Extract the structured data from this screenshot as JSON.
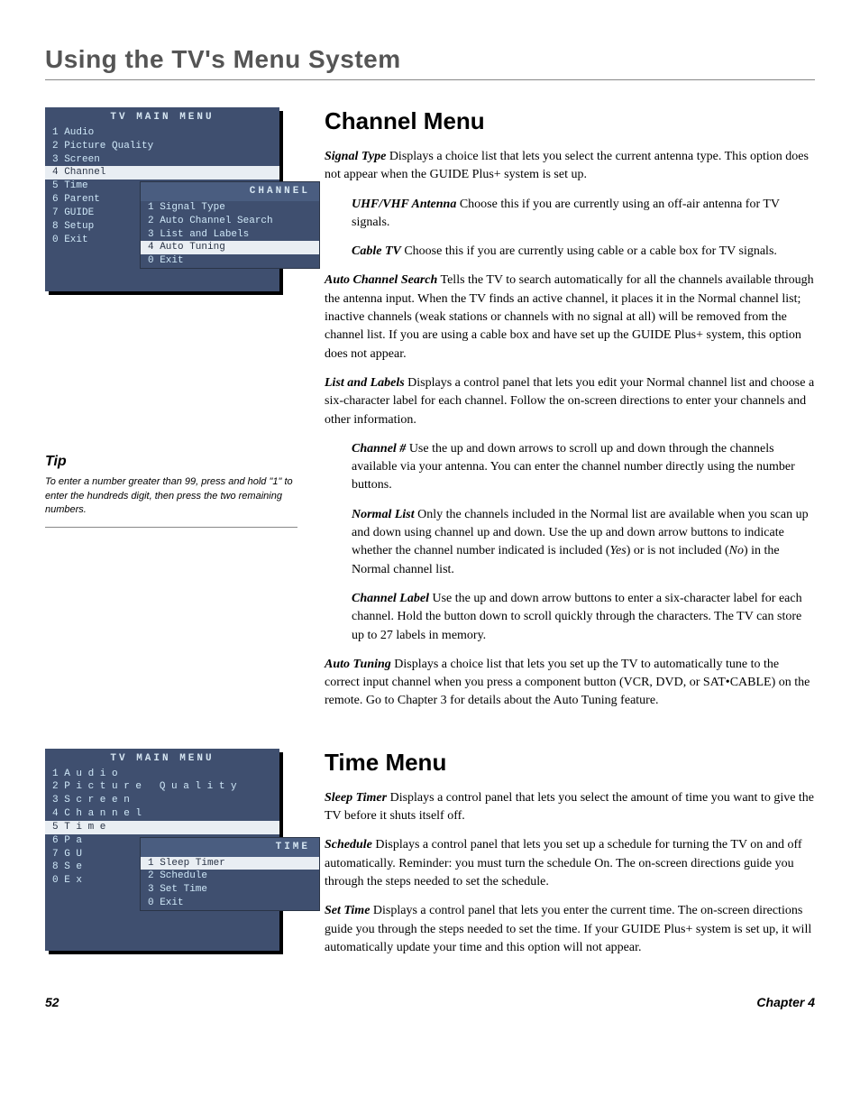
{
  "page_title": "Using the TV's Menu System",
  "menu1": {
    "title": "TV MAIN MENU",
    "items": [
      {
        "n": "1",
        "l": "Audio"
      },
      {
        "n": "2",
        "l": "Picture Quality"
      },
      {
        "n": "3",
        "l": "Screen"
      },
      {
        "n": "4",
        "l": "Channel",
        "sel": true
      },
      {
        "n": "5",
        "l": "Time"
      },
      {
        "n": "6",
        "l": "Parent"
      },
      {
        "n": "7",
        "l": "GUIDE"
      },
      {
        "n": "8",
        "l": "Setup"
      },
      {
        "n": "0",
        "l": "Exit"
      }
    ],
    "sub_title": "CHANNEL",
    "sub_items": [
      {
        "n": "1",
        "l": "Signal Type"
      },
      {
        "n": "2",
        "l": "Auto Channel Search"
      },
      {
        "n": "3",
        "l": "List and Labels"
      },
      {
        "n": "4",
        "l": "Auto Tuning",
        "sel": true
      },
      {
        "n": "0",
        "l": "Exit"
      }
    ]
  },
  "menu2": {
    "title": "TV MAIN MENU",
    "items": [
      {
        "n": "1",
        "l": "Audio"
      },
      {
        "n": "2",
        "l": "Picture Quality"
      },
      {
        "n": "3",
        "l": "Screen"
      },
      {
        "n": "4",
        "l": "Channel"
      },
      {
        "n": "5",
        "l": "Time",
        "sel": true
      },
      {
        "n": "6",
        "l": "Pa"
      },
      {
        "n": "7",
        "l": "GU"
      },
      {
        "n": "8",
        "l": "Se"
      },
      {
        "n": "0",
        "l": "Ex"
      }
    ],
    "sub_title": "TIME",
    "sub_items": [
      {
        "n": "1",
        "l": "Sleep Timer",
        "sel": true
      },
      {
        "n": "2",
        "l": "Schedule"
      },
      {
        "n": "3",
        "l": "Set Time"
      },
      {
        "n": "0",
        "l": "Exit"
      }
    ]
  },
  "tip": {
    "heading": "Tip",
    "text": "To enter a number greater than 99, press and hold \"1\" to enter the hundreds digit, then press the two remaining numbers."
  },
  "section1": {
    "heading": "Channel Menu",
    "p1a": "Signal Type",
    "p1b": "   Displays a choice list that lets you select the current antenna type. This option does not appear when the GUIDE Plus+ system is set up.",
    "p2a": "UHF/VHF Antenna",
    "p2b": "   Choose this if you are currently using an off-air antenna for TV signals.",
    "p3a": "Cable TV",
    "p3b": "   Choose this if you are currently using cable or a cable box for TV signals.",
    "p4a": "Auto Channel Search",
    "p4b": "   Tells the TV to search automatically for all the channels available through the antenna input. When the TV finds an active channel, it places it in the Normal channel list; inactive channels (weak stations or channels with no signal at all) will be removed from the channel list. If you are using a cable box and have set up the GUIDE Plus+ system, this option does not appear.",
    "p5a": "List and Labels",
    "p5b": "   Displays a control panel that lets you edit your Normal channel list and choose a six-character label for each channel. Follow the on-screen directions to enter your channels and other information.",
    "p6a": "Channel #",
    "p6b": "   Use the up and down arrows to scroll up and down through the channels available via your antenna. You can enter the channel number directly using the number buttons.",
    "p7a": "Normal List",
    "p7b_pre": "   Only the channels included in the Normal list are available when you scan up and down using channel up and down. Use the up and down arrow buttons to indicate whether the channel number indicated is included (",
    "p7_yes": "Yes",
    "p7_mid": ") or is not included (",
    "p7_no": "No",
    "p7_post": ") in the Normal channel list.",
    "p8a": "Channel Label",
    "p8b": "   Use the up and down arrow buttons to enter a six-character label for each channel. Hold the button down to scroll quickly through the characters. The TV can store up to 27 labels in memory.",
    "p9a": "Auto Tuning",
    "p9b": "   Displays a choice list that lets you set up the TV to automatically tune to the correct input channel when you press a component button (VCR, DVD, or SAT•CABLE) on the remote. Go to Chapter 3 for details about the Auto Tuning feature."
  },
  "section2": {
    "heading": "Time Menu",
    "p1a": "Sleep Timer",
    "p1b": "   Displays a control panel that lets you select the amount of time you want to give the TV before it shuts itself off.",
    "p2a": "Schedule",
    "p2b": "   Displays a control panel that lets you set up a schedule for turning the TV on and off automatically. Reminder: you must turn the schedule On. The on-screen directions guide you through the steps needed to set the schedule.",
    "p3a": "Set Time",
    "p3b": "   Displays a control panel that lets you enter the current time. The on-screen directions guide you through the steps needed to set the time. If your GUIDE Plus+ system is set up, it will automatically update your time and this option will not appear."
  },
  "footer": {
    "page": "52",
    "chapter": "Chapter 4"
  }
}
